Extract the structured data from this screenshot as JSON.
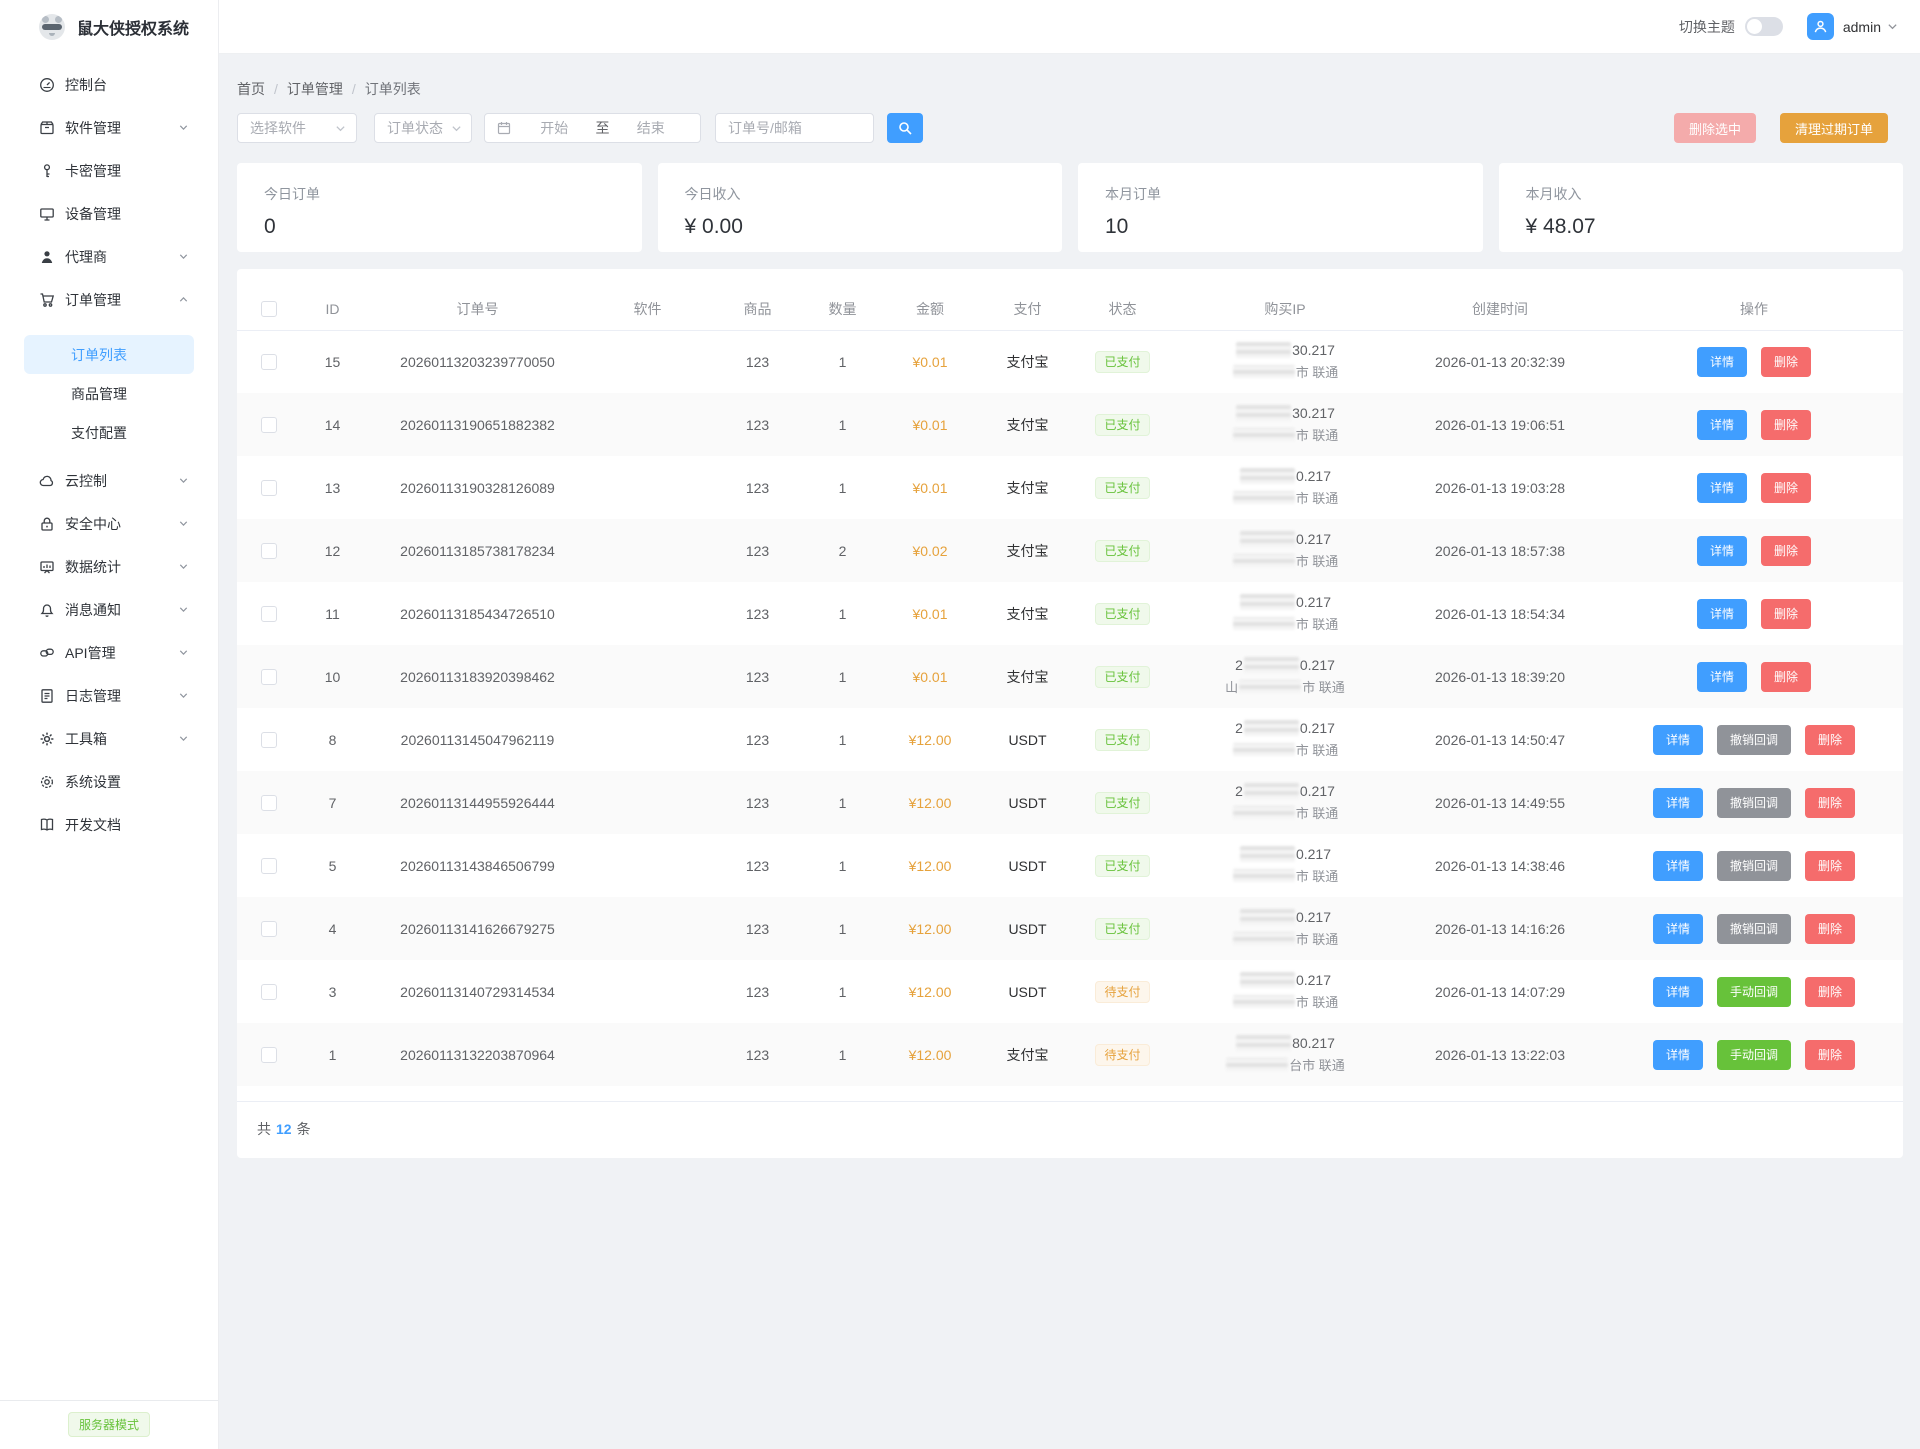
{
  "app": {
    "title": "鼠大侠授权系统",
    "mode_badge": "服务器模式"
  },
  "header": {
    "theme_toggle_label": "切换主题",
    "username": "admin"
  },
  "sidebar": {
    "items": [
      {
        "icon": "dashboard-icon",
        "label": "控制台",
        "chevron": null
      },
      {
        "icon": "package-icon",
        "label": "软件管理",
        "chevron": "down"
      },
      {
        "icon": "key-icon",
        "label": "卡密管理",
        "chevron": null
      },
      {
        "icon": "monitor-icon",
        "label": "设备管理",
        "chevron": null
      },
      {
        "icon": "user-icon",
        "label": "代理商",
        "chevron": "down"
      },
      {
        "icon": "cart-icon",
        "label": "订单管理",
        "chevron": "up",
        "children": [
          {
            "label": "订单列表",
            "active": true
          },
          {
            "label": "商品管理",
            "active": false
          },
          {
            "label": "支付配置",
            "active": false
          }
        ]
      },
      {
        "icon": "cloud-icon",
        "label": "云控制",
        "chevron": "down"
      },
      {
        "icon": "lock-icon",
        "label": "安全中心",
        "chevron": "down"
      },
      {
        "icon": "chart-board-icon",
        "label": "数据统计",
        "chevron": "down"
      },
      {
        "icon": "bell-icon",
        "label": "消息通知",
        "chevron": "down"
      },
      {
        "icon": "api-link-icon",
        "label": "API管理",
        "chevron": "down"
      },
      {
        "icon": "document-icon",
        "label": "日志管理",
        "chevron": "down"
      },
      {
        "icon": "toolbox-icon",
        "label": "工具箱",
        "chevron": "down"
      },
      {
        "icon": "settings-icon",
        "label": "系统设置",
        "chevron": null
      },
      {
        "icon": "book-icon",
        "label": "开发文档",
        "chevron": null
      }
    ]
  },
  "breadcrumb": [
    "首页",
    "订单管理",
    "订单列表"
  ],
  "filters": {
    "software_placeholder": "选择软件",
    "status_placeholder": "订单状态",
    "date_start": "开始",
    "date_to": "至",
    "date_end": "结束",
    "keyword_placeholder": "订单号/邮箱",
    "delete_selected_label": "删除选中",
    "clean_expired_label": "清理过期订单"
  },
  "stats": [
    {
      "label": "今日订单",
      "value": "0"
    },
    {
      "label": "今日收入",
      "value": "¥ 0.00"
    },
    {
      "label": "本月订单",
      "value": "10"
    },
    {
      "label": "本月收入",
      "value": "¥ 48.07"
    }
  ],
  "table": {
    "columns": [
      "",
      "ID",
      "订单号",
      "软件",
      "商品",
      "数量",
      "金额",
      "支付",
      "状态",
      "购买IP",
      "创建时间",
      "操作"
    ],
    "rows": [
      {
        "id": "15",
        "order_no": "20260113203239770050",
        "software": "",
        "product": "123",
        "qty": "1",
        "amount": "¥0.01",
        "payment": "支付宝",
        "status": {
          "label": "已支付",
          "type": "success"
        },
        "ip": {
          "pre": "",
          "suf": "30.217",
          "loc_pre": "",
          "loc_suf": "市 联通"
        },
        "created": "2026-01-13 20:32:39",
        "actions": [
          {
            "label": "详情",
            "type": "primary"
          },
          {
            "label": "删除",
            "type": "danger"
          }
        ]
      },
      {
        "id": "14",
        "order_no": "20260113190651882382",
        "software": "",
        "product": "123",
        "qty": "1",
        "amount": "¥0.01",
        "payment": "支付宝",
        "status": {
          "label": "已支付",
          "type": "success"
        },
        "ip": {
          "pre": "",
          "suf": "30.217",
          "loc_pre": "",
          "loc_suf": "市 联通"
        },
        "created": "2026-01-13 19:06:51",
        "actions": [
          {
            "label": "详情",
            "type": "primary"
          },
          {
            "label": "删除",
            "type": "danger"
          }
        ]
      },
      {
        "id": "13",
        "order_no": "20260113190328126089",
        "software": "",
        "product": "123",
        "qty": "1",
        "amount": "¥0.01",
        "payment": "支付宝",
        "status": {
          "label": "已支付",
          "type": "success"
        },
        "ip": {
          "pre": "",
          "suf": "0.217",
          "loc_pre": "",
          "loc_suf": "市 联通"
        },
        "created": "2026-01-13 19:03:28",
        "actions": [
          {
            "label": "详情",
            "type": "primary"
          },
          {
            "label": "删除",
            "type": "danger"
          }
        ]
      },
      {
        "id": "12",
        "order_no": "20260113185738178234",
        "software": "",
        "product": "123",
        "qty": "2",
        "amount": "¥0.02",
        "payment": "支付宝",
        "status": {
          "label": "已支付",
          "type": "success"
        },
        "ip": {
          "pre": "",
          "suf": "0.217",
          "loc_pre": "",
          "loc_suf": "市 联通"
        },
        "created": "2026-01-13 18:57:38",
        "actions": [
          {
            "label": "详情",
            "type": "primary"
          },
          {
            "label": "删除",
            "type": "danger"
          }
        ]
      },
      {
        "id": "11",
        "order_no": "20260113185434726510",
        "software": "",
        "product": "123",
        "qty": "1",
        "amount": "¥0.01",
        "payment": "支付宝",
        "status": {
          "label": "已支付",
          "type": "success"
        },
        "ip": {
          "pre": "",
          "suf": "0.217",
          "loc_pre": "",
          "loc_suf": "市 联通"
        },
        "created": "2026-01-13 18:54:34",
        "actions": [
          {
            "label": "详情",
            "type": "primary"
          },
          {
            "label": "删除",
            "type": "danger"
          }
        ]
      },
      {
        "id": "10",
        "order_no": "20260113183920398462",
        "software": "",
        "product": "123",
        "qty": "1",
        "amount": "¥0.01",
        "payment": "支付宝",
        "status": {
          "label": "已支付",
          "type": "success"
        },
        "ip": {
          "pre": "2",
          "suf": "0.217",
          "loc_pre": "山",
          "loc_suf": "市 联通"
        },
        "created": "2026-01-13 18:39:20",
        "actions": [
          {
            "label": "详情",
            "type": "primary"
          },
          {
            "label": "删除",
            "type": "danger"
          }
        ]
      },
      {
        "id": "8",
        "order_no": "20260113145047962119",
        "software": "",
        "product": "123",
        "qty": "1",
        "amount": "¥12.00",
        "payment": "USDT",
        "status": {
          "label": "已支付",
          "type": "success"
        },
        "ip": {
          "pre": "2",
          "suf": "0.217",
          "loc_pre": "",
          "loc_suf": "市 联通"
        },
        "created": "2026-01-13 14:50:47",
        "actions": [
          {
            "label": "详情",
            "type": "primary"
          },
          {
            "label": "撤销回调",
            "type": "info"
          },
          {
            "label": "删除",
            "type": "danger"
          }
        ]
      },
      {
        "id": "7",
        "order_no": "20260113144955926444",
        "software": "",
        "product": "123",
        "qty": "1",
        "amount": "¥12.00",
        "payment": "USDT",
        "status": {
          "label": "已支付",
          "type": "success"
        },
        "ip": {
          "pre": "2",
          "suf": "0.217",
          "loc_pre": "",
          "loc_suf": "市 联通"
        },
        "created": "2026-01-13 14:49:55",
        "actions": [
          {
            "label": "详情",
            "type": "primary"
          },
          {
            "label": "撤销回调",
            "type": "info"
          },
          {
            "label": "删除",
            "type": "danger"
          }
        ]
      },
      {
        "id": "5",
        "order_no": "20260113143846506799",
        "software": "",
        "product": "123",
        "qty": "1",
        "amount": "¥12.00",
        "payment": "USDT",
        "status": {
          "label": "已支付",
          "type": "success"
        },
        "ip": {
          "pre": "",
          "suf": "0.217",
          "loc_pre": "",
          "loc_suf": "市 联通"
        },
        "created": "2026-01-13 14:38:46",
        "actions": [
          {
            "label": "详情",
            "type": "primary"
          },
          {
            "label": "撤销回调",
            "type": "info"
          },
          {
            "label": "删除",
            "type": "danger"
          }
        ]
      },
      {
        "id": "4",
        "order_no": "20260113141626679275",
        "software": "",
        "product": "123",
        "qty": "1",
        "amount": "¥12.00",
        "payment": "USDT",
        "status": {
          "label": "已支付",
          "type": "success"
        },
        "ip": {
          "pre": "",
          "suf": "0.217",
          "loc_pre": "",
          "loc_suf": "市 联通"
        },
        "created": "2026-01-13 14:16:26",
        "actions": [
          {
            "label": "详情",
            "type": "primary"
          },
          {
            "label": "撤销回调",
            "type": "info"
          },
          {
            "label": "删除",
            "type": "danger"
          }
        ]
      },
      {
        "id": "3",
        "order_no": "20260113140729314534",
        "software": "",
        "product": "123",
        "qty": "1",
        "amount": "¥12.00",
        "payment": "USDT",
        "status": {
          "label": "待支付",
          "type": "warning"
        },
        "ip": {
          "pre": "",
          "suf": "0.217",
          "loc_pre": "",
          "loc_suf": "市 联通"
        },
        "created": "2026-01-13 14:07:29",
        "actions": [
          {
            "label": "详情",
            "type": "primary"
          },
          {
            "label": "手动回调",
            "type": "success"
          },
          {
            "label": "删除",
            "type": "danger"
          }
        ]
      },
      {
        "id": "1",
        "order_no": "20260113132203870964",
        "software": "",
        "product": "123",
        "qty": "1",
        "amount": "¥12.00",
        "payment": "支付宝",
        "status": {
          "label": "待支付",
          "type": "warning"
        },
        "ip": {
          "pre": "",
          "suf": "80.217",
          "loc_pre": "",
          "loc_suf": "台市 联通"
        },
        "created": "2026-01-13 13:22:03",
        "actions": [
          {
            "label": "详情",
            "type": "primary"
          },
          {
            "label": "手动回调",
            "type": "success"
          },
          {
            "label": "删除",
            "type": "danger"
          }
        ]
      }
    ],
    "footer": {
      "prefix": "共",
      "count": "12",
      "suffix": "条"
    }
  },
  "colors": {
    "accent": "#409eff",
    "success": "#67c23a",
    "warning": "#e6a23c",
    "danger": "#f56c6c",
    "info": "#909399",
    "background": "#f0f2f5"
  }
}
